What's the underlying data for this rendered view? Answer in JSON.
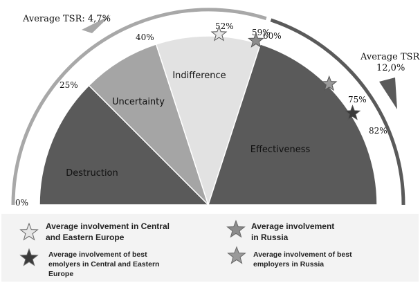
{
  "annotations": {
    "left_tsr": "Average TSR: 4,7%",
    "right_tsr_line1": "Average TSR:",
    "right_tsr_line2": "12,0%"
  },
  "scale_labels": {
    "p0": "0%",
    "p25": "25%",
    "p40": "40%",
    "p52": "52%",
    "p59": "59%",
    "p60": "60%",
    "p75": "75%",
    "p82": "82%"
  },
  "segments": {
    "destruction": "Destruction",
    "uncertainty": "Uncertainty",
    "indifference": "Indifference",
    "effectiveness": "Effectiveness"
  },
  "legend": {
    "cee_avg": [
      "Average involvement in Central",
      "and Eastern Europe"
    ],
    "russia_avg": [
      "Average involvement",
      "in Russia"
    ],
    "cee_best": [
      "Average involvement of best",
      "emolyers in Central and Eastern",
      "Europe"
    ],
    "russia_best": [
      "Average involvement of best",
      "employers in Russia"
    ]
  },
  "chart_data": {
    "type": "semicircle-scale",
    "range": [
      0,
      100
    ],
    "zones": [
      {
        "label": "Destruction",
        "from": 0,
        "to": 25,
        "color": "#5a5a5a"
      },
      {
        "label": "Uncertainty",
        "from": 25,
        "to": 40,
        "color": "#a5a5a5"
      },
      {
        "label": "Indifference",
        "from": 40,
        "to": 60,
        "color": "#e2e2e2"
      },
      {
        "label": "Effectiveness",
        "from": 60,
        "to": 100,
        "color": "#5a5a5a"
      }
    ],
    "markers": [
      {
        "value": 52,
        "legend": "cee_avg",
        "fill": "#e6e6e6"
      },
      {
        "value": 59,
        "legend": "russia_avg",
        "fill": "#8c8c8c"
      },
      {
        "value": 75,
        "legend": "russia_best",
        "fill": "#9a9a9a"
      },
      {
        "value": 82,
        "legend": "cee_best",
        "fill": "#3a3a3a"
      }
    ],
    "tsr_arcs": [
      {
        "label": "Average TSR: 4,7%",
        "from": 0,
        "to": 60,
        "color": "#a8a8a8"
      },
      {
        "label": "Average TSR: 12,0%",
        "from": 60,
        "to": 100,
        "color": "#5a5a5a"
      }
    ]
  }
}
